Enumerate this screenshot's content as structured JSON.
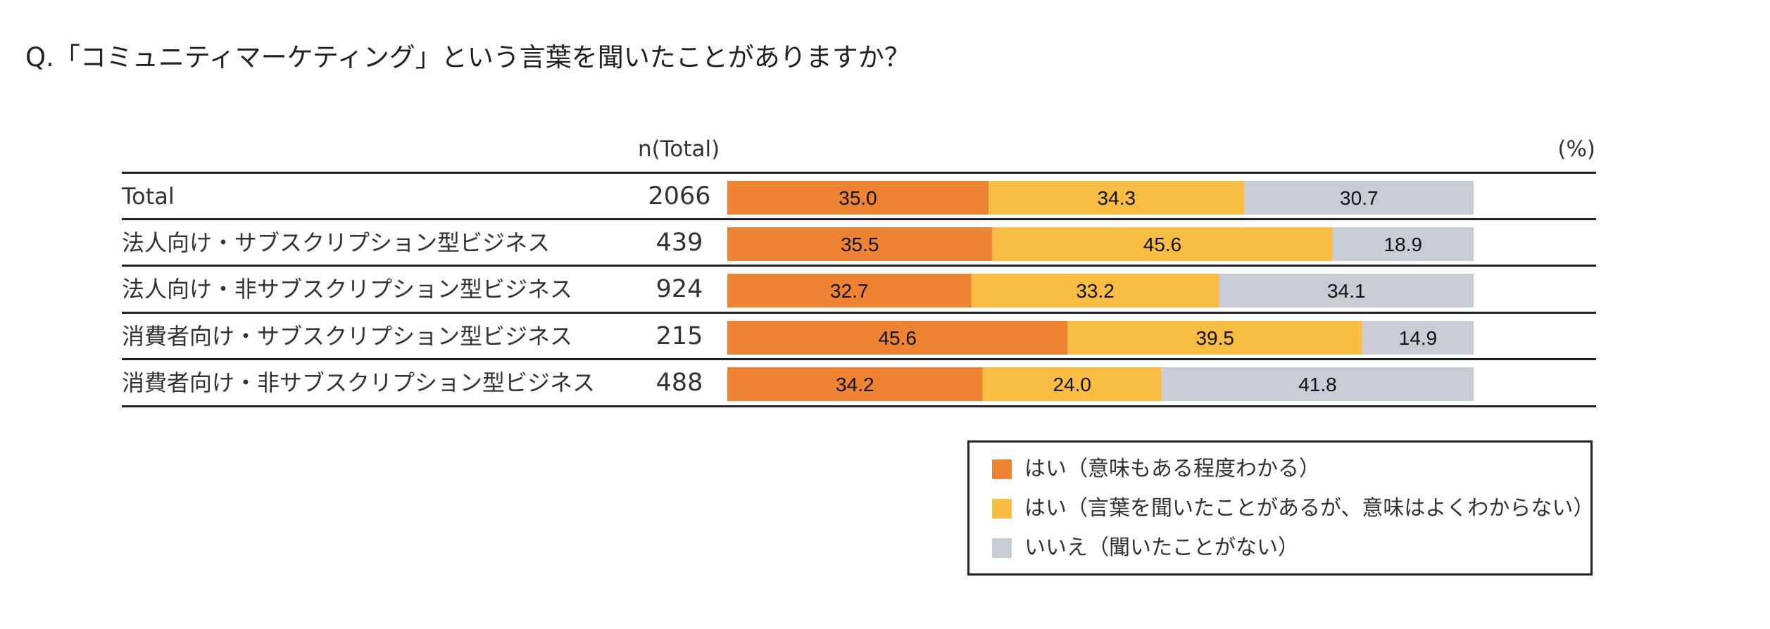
{
  "chart_data": {
    "type": "bar",
    "orientation": "horizontal",
    "stacked": true,
    "title": "Q.「コミュニティマーケティング」という言葉を聞いたことがありますか？",
    "n_header": "n(Total)",
    "unit_label": "(%)",
    "categories": [
      "Total",
      "法人向け・サブスクリプション型ビジネス",
      "法人向け・非サブスクリプション型ビジネス",
      "消費者向け・サブスクリプション型ビジネス",
      "消費者向け・非サブスクリプション型ビジネス"
    ],
    "n_values": [
      "2066",
      "439",
      "924",
      "215",
      "488"
    ],
    "series": [
      {
        "name": "はい（意味もある程度わかる）",
        "color": "#EE8433",
        "values": [
          35.0,
          35.5,
          32.7,
          45.6,
          34.2
        ],
        "labels": [
          "35.0",
          "35.5",
          "32.7",
          "45.6",
          "34.2"
        ]
      },
      {
        "name": "はい（言葉を聞いたことがあるが、意味はよくわからない）",
        "color": "#F9BD43",
        "values": [
          34.3,
          45.6,
          33.2,
          39.5,
          24.0
        ],
        "labels": [
          "34.3",
          "45.6",
          "33.2",
          "39.5",
          "24.0"
        ]
      },
      {
        "name": "いいえ（聞いたことがない）",
        "color": "#C8CDD5",
        "values": [
          30.7,
          18.9,
          34.1,
          14.9,
          41.8
        ],
        "labels": [
          "30.7",
          "18.9",
          "34.1",
          "14.9",
          "41.8"
        ]
      }
    ],
    "xlim": [
      0,
      100
    ],
    "legend_position": "bottom-right"
  }
}
